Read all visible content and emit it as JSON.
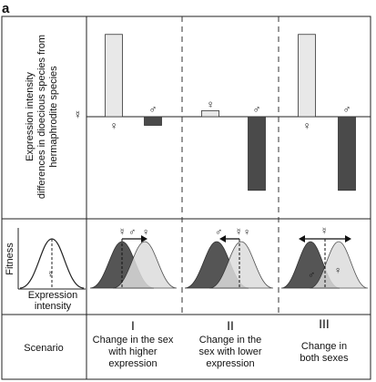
{
  "panel_label": "a",
  "ylabel_top": {
    "line1": "Expression intensity",
    "line2": "differences in dioecious species from",
    "line3": "hermaphrodite species"
  },
  "symbols": {
    "herm": "☿",
    "male": "♂",
    "female": "♀"
  },
  "fitness_inset": {
    "ylabel": "Fitness",
    "xlabel_line1": "Expression",
    "xlabel_line2": "intensity"
  },
  "scenario_label": "Scenario",
  "scenarios": [
    {
      "numeral": "I",
      "line1": "Change in the sex",
      "line2": "with  higher",
      "line3": "expression"
    },
    {
      "numeral": "II",
      "line1": "Change in the",
      "line2": "sex with  lower",
      "line3": "expression"
    },
    {
      "numeral": "III",
      "line1": "Change in",
      "line2": "both sexes",
      "line3": ""
    }
  ],
  "chart_data": {
    "type": "bar",
    "description_units": "relative expression difference (dioecious minus hermaphrodite), arbitrary units",
    "categories": [
      "I-female",
      "I-male",
      "II-female",
      "II-male",
      "III-female",
      "III-male"
    ],
    "values": [
      0.95,
      -0.1,
      0.07,
      -0.85,
      0.95,
      -0.85
    ],
    "colors": {
      "female_bar": "#e8e8e8",
      "male_bar": "#4a4a4a"
    }
  },
  "colors": {
    "dark_dist": "#555555",
    "mid_dist": "#9a9a9a",
    "light_dist": "#dcdcdc"
  }
}
